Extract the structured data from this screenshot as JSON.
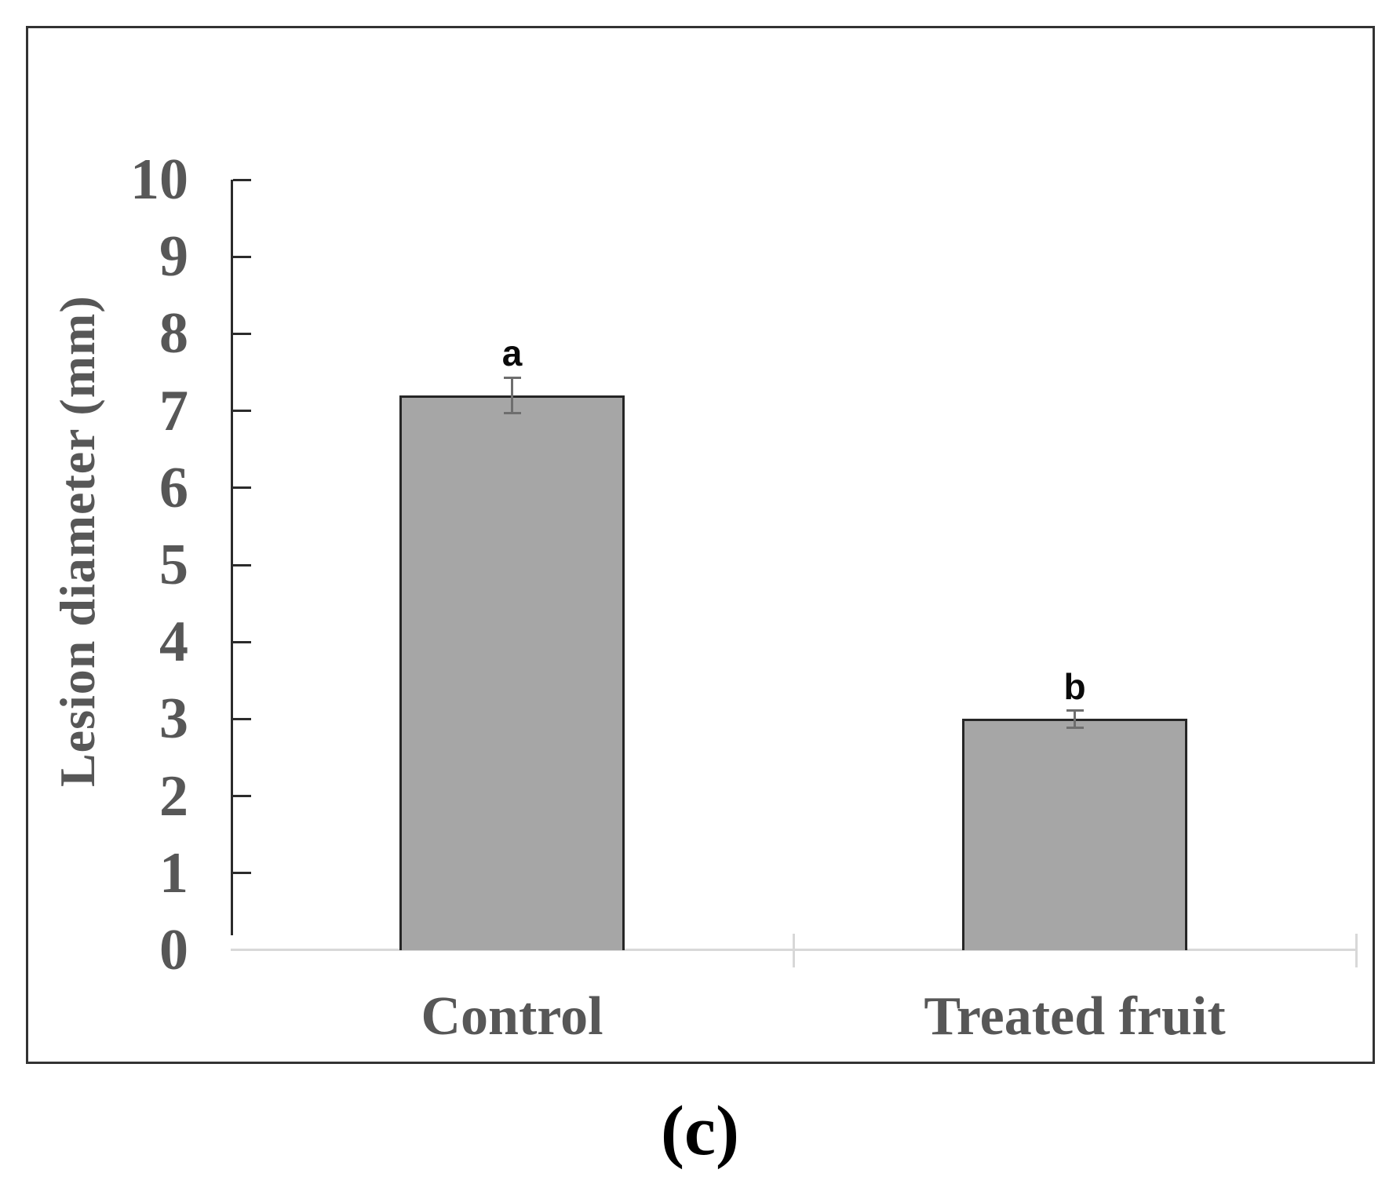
{
  "figure": {
    "caption": "(c)"
  },
  "chart_data": {
    "type": "bar",
    "title": "",
    "categories": [
      "Control",
      "Treated fruit"
    ],
    "values": [
      7.2,
      3.0
    ],
    "error_bars": [
      0.23,
      0.11
    ],
    "significance_letters": [
      "a",
      "b"
    ],
    "xlabel": "",
    "ylabel": "Lesion diameter (mm)",
    "ylim": [
      0,
      10
    ],
    "yticks": [
      0,
      1,
      2,
      3,
      4,
      5,
      6,
      7,
      8,
      9,
      10
    ],
    "grid": false,
    "legend": "none",
    "colors": {
      "bar_fill": "#a6a6a6",
      "bar_border": "#262626",
      "axis_line": "#2b2b2b",
      "axis_text": "#575757",
      "error_bar": "#6e6e6e",
      "baseline": "#d8d8d8",
      "significance_letter": "#0a0a0a",
      "caption": "#000000"
    }
  }
}
